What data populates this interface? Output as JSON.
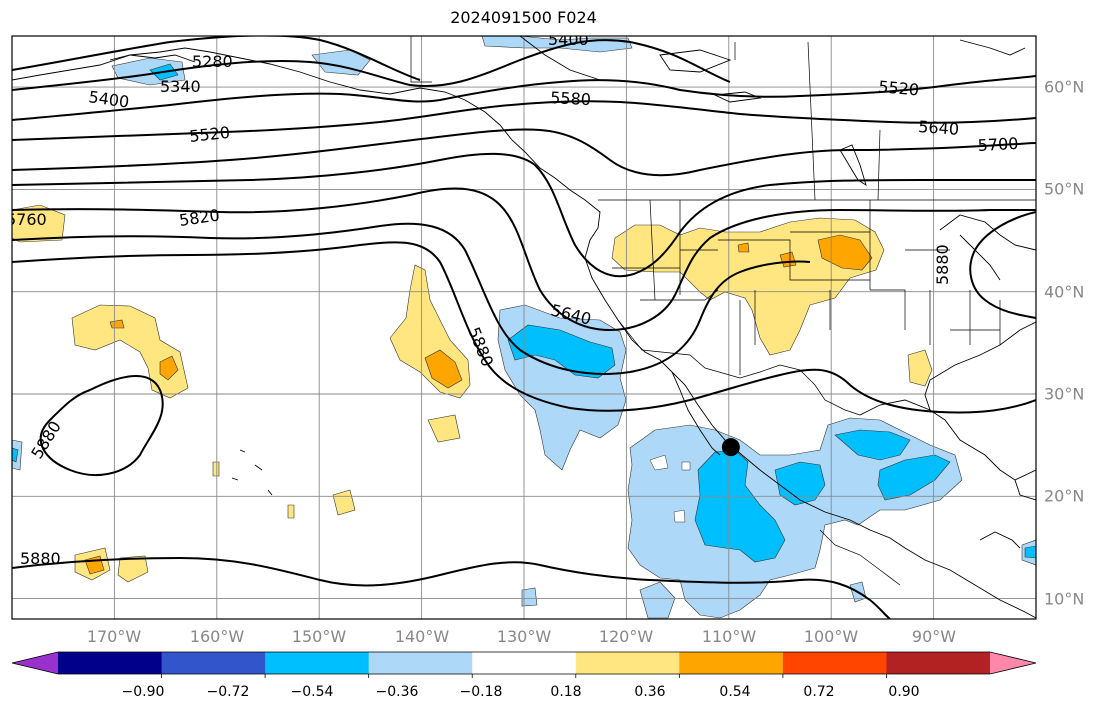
{
  "title": "2024091500 F024",
  "map": {
    "projection": "PlateCarree",
    "lon_range": [
      -180,
      -80
    ],
    "lat_range": [
      8,
      65
    ],
    "lon_ticks": [
      {
        "value": -170,
        "label": "170°W"
      },
      {
        "value": -160,
        "label": "160°W"
      },
      {
        "value": -150,
        "label": "150°W"
      },
      {
        "value": -140,
        "label": "140°W"
      },
      {
        "value": -130,
        "label": "130°W"
      },
      {
        "value": -120,
        "label": "120°W"
      },
      {
        "value": -110,
        "label": "110°W"
      },
      {
        "value": -100,
        "label": "100°W"
      },
      {
        "value": -90,
        "label": "90°W"
      }
    ],
    "lat_ticks": [
      {
        "value": 60,
        "label": "60°N"
      },
      {
        "value": 50,
        "label": "50°N"
      },
      {
        "value": 40,
        "label": "40°N"
      },
      {
        "value": 30,
        "label": "30°N"
      },
      {
        "value": 20,
        "label": "20°N"
      },
      {
        "value": 10,
        "label": "10°N"
      }
    ],
    "gridlines": true,
    "tick_label_color": "#888888",
    "contour_labels": [
      "5280",
      "5340",
      "5400",
      "5400",
      "5520",
      "5580",
      "5520",
      "5640",
      "5700",
      "5760",
      "5820",
      "5640",
      "5880",
      "5880",
      "5880",
      "5880"
    ],
    "marker": {
      "label": "storm-center-dot",
      "lon": -109.8,
      "lat": 24.8
    }
  },
  "colorbar": {
    "labels": [
      "−0.90",
      "−0.72",
      "−0.54",
      "−0.36",
      "−0.18",
      "0.18",
      "0.36",
      "0.54",
      "0.72",
      "0.90"
    ],
    "colors": [
      "#9932cc",
      "#00008b",
      "#3355cc",
      "#00bfff",
      "#add8f8",
      "#ffffff",
      "#ffe680",
      "#ffa500",
      "#ff4500",
      "#b22222",
      "#ff88aa"
    ]
  }
}
